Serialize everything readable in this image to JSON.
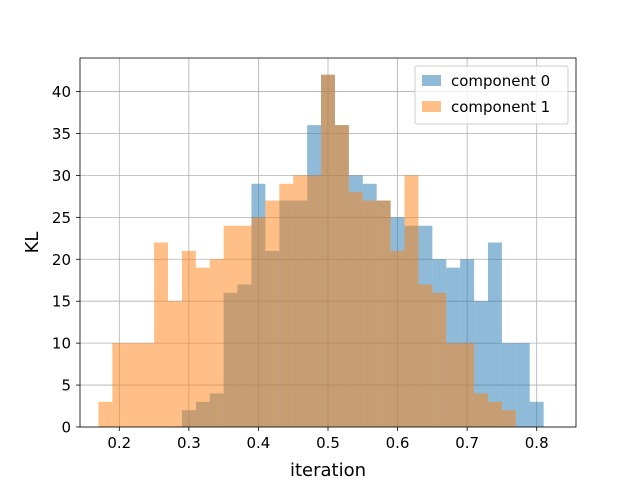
{
  "chart_data": {
    "type": "bar",
    "subtype": "overlapping-histogram",
    "xlabel": "iteration",
    "ylabel": "KL",
    "xlim": [
      0.1435,
      0.8565
    ],
    "ylim": [
      0,
      44
    ],
    "xticks": [
      0.2,
      0.3,
      0.4,
      0.5,
      0.6,
      0.7,
      0.8
    ],
    "yticks": [
      0,
      5,
      10,
      15,
      20,
      25,
      30,
      35,
      40
    ],
    "grid": true,
    "legend": "top-right",
    "opacity": 0.5,
    "series": [
      {
        "name": "component 0",
        "color": "#1f77b4",
        "bin_start": 0.29,
        "bin_width": 0.02,
        "values": [
          2,
          3,
          4,
          16,
          17,
          29,
          21,
          27,
          27,
          36,
          42,
          36,
          30,
          29,
          27,
          25,
          24,
          24,
          20,
          19,
          20,
          15,
          22,
          10,
          10,
          3
        ]
      },
      {
        "name": "component 1",
        "color": "#ff7f0e",
        "bin_start": 0.17,
        "bin_width": 0.02,
        "values": [
          3,
          10,
          10,
          10,
          22,
          15,
          21,
          19,
          20,
          24,
          24,
          25,
          27,
          29,
          30,
          30,
          42,
          36,
          28,
          27,
          27,
          21,
          30,
          17,
          16,
          10,
          10,
          4,
          3,
          2
        ]
      }
    ]
  }
}
